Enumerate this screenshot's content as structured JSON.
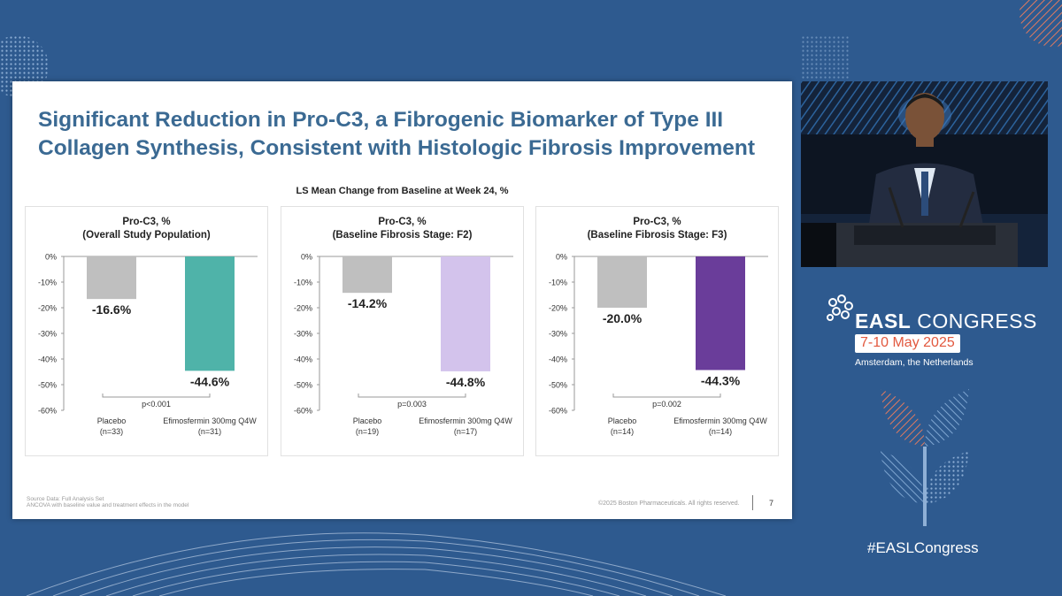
{
  "slide": {
    "title_line1": "Significant Reduction in Pro-C3, a Fibrogenic Biomarker of Type III",
    "title_line2": "Collagen Synthesis, Consistent with Histologic Fibrosis Improvement",
    "chart_subtitle": "LS Mean Change from Baseline at Week 24, %",
    "source_line1": "Source Data: Full Analysis Set",
    "source_line2": "ANCOVA with baseline value and treatment effects in the model",
    "copyright": "©2025  Boston Pharmaceuticals.  All rights reserved.",
    "page_number": "7"
  },
  "congress": {
    "name_bold": "EASL",
    "name_rest": " CONGRESS",
    "dates": "7-10 May 2025",
    "location": "Amsterdam, the Netherlands",
    "hashtag": "#EASLCongress"
  },
  "colors": {
    "background": "#2e5a8f",
    "title": "#3b6a93",
    "placebo": "#bfbfbf",
    "efimosfermin_overall": "#4fb3a9",
    "efimosfermin_f2": "#d3c3ec",
    "efimosfermin_f3": "#6a3d9a",
    "dates_text": "#e2583e"
  },
  "chart_data": [
    {
      "type": "bar",
      "title": "Pro-C3, %",
      "subtitle": "(Overall Study Population)",
      "categories": [
        "Placebo",
        "Efimosfermin 300mg Q4W"
      ],
      "category_n": [
        "(n=33)",
        "(n=31)"
      ],
      "values": [
        -16.6,
        -44.6
      ],
      "value_labels": [
        "-16.6%",
        "-44.6%"
      ],
      "colors": [
        "#bfbfbf",
        "#4fb3a9"
      ],
      "p_value": "p<0.001",
      "ylim": [
        -60,
        0
      ],
      "yticks": [
        0,
        -10,
        -20,
        -30,
        -40,
        -50,
        -60
      ],
      "ytick_labels": [
        "0%",
        "-10%",
        "-20%",
        "-30%",
        "-40%",
        "-50%",
        "-60%"
      ]
    },
    {
      "type": "bar",
      "title": "Pro-C3, %",
      "subtitle": "(Baseline Fibrosis Stage: F2)",
      "categories": [
        "Placebo",
        "Efimosfermin 300mg Q4W"
      ],
      "category_n": [
        "(n=19)",
        "(n=17)"
      ],
      "values": [
        -14.2,
        -44.8
      ],
      "value_labels": [
        "-14.2%",
        "-44.8%"
      ],
      "colors": [
        "#bfbfbf",
        "#d3c3ec"
      ],
      "p_value": "p=0.003",
      "ylim": [
        -60,
        0
      ],
      "yticks": [
        0,
        -10,
        -20,
        -30,
        -40,
        -50,
        -60
      ],
      "ytick_labels": [
        "0%",
        "-10%",
        "-20%",
        "-30%",
        "-40%",
        "-50%",
        "-60%"
      ]
    },
    {
      "type": "bar",
      "title": "Pro-C3, %",
      "subtitle": "(Baseline Fibrosis Stage: F3)",
      "categories": [
        "Placebo",
        "Efimosfermin 300mg Q4W"
      ],
      "category_n": [
        "(n=14)",
        "(n=14)"
      ],
      "values": [
        -20.0,
        -44.3
      ],
      "value_labels": [
        "-20.0%",
        "-44.3%"
      ],
      "colors": [
        "#bfbfbf",
        "#6a3d9a"
      ],
      "p_value": "p=0.002",
      "ylim": [
        -60,
        0
      ],
      "yticks": [
        0,
        -10,
        -20,
        -30,
        -40,
        -50,
        -60
      ],
      "ytick_labels": [
        "0%",
        "-10%",
        "-20%",
        "-30%",
        "-40%",
        "-50%",
        "-60%"
      ]
    }
  ]
}
